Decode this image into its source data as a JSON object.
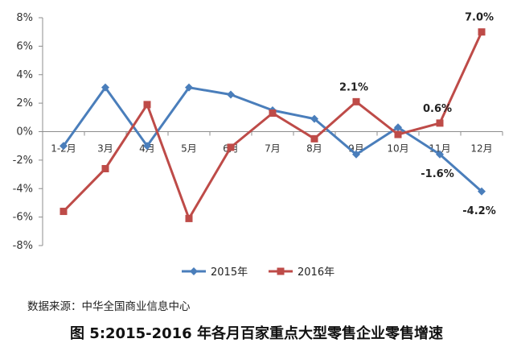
{
  "source_text": "数据来源：中华全国商业信息中心",
  "caption": "图 5:2015-2016 年各月百家重点大型零售企业零售增速",
  "chart_data": {
    "type": "line",
    "categories": [
      "1-2月",
      "3月",
      "4月",
      "5月",
      "6月",
      "7月",
      "8月",
      "9月",
      "10月",
      "11月",
      "12月"
    ],
    "series": [
      {
        "name": "2015年",
        "color": "#4a7ebb",
        "marker": "diamond",
        "values": [
          -1.0,
          3.1,
          -1.0,
          3.1,
          2.6,
          1.5,
          0.9,
          -1.6,
          0.3,
          -1.6,
          -4.2
        ]
      },
      {
        "name": "2016年",
        "color": "#be4b48",
        "marker": "square",
        "values": [
          -5.6,
          -2.6,
          1.9,
          -6.1,
          -1.1,
          1.3,
          -0.5,
          2.1,
          -0.2,
          0.6,
          7.0
        ]
      }
    ],
    "data_labels": [
      {
        "series": 0,
        "index": 9,
        "text": "-1.6%"
      },
      {
        "series": 0,
        "index": 10,
        "text": "-4.2%"
      },
      {
        "series": 1,
        "index": 7,
        "text": "2.1%"
      },
      {
        "series": 1,
        "index": 9,
        "text": "0.6%"
      },
      {
        "series": 1,
        "index": 10,
        "text": "7.0%"
      }
    ],
    "y_ticks": [
      "8%",
      "6%",
      "4%",
      "2%",
      "0%",
      "-2%",
      "-4%",
      "-6%",
      "-8%"
    ],
    "ylim": [
      -8,
      8
    ],
    "grid": false,
    "legend_position": "bottom"
  }
}
